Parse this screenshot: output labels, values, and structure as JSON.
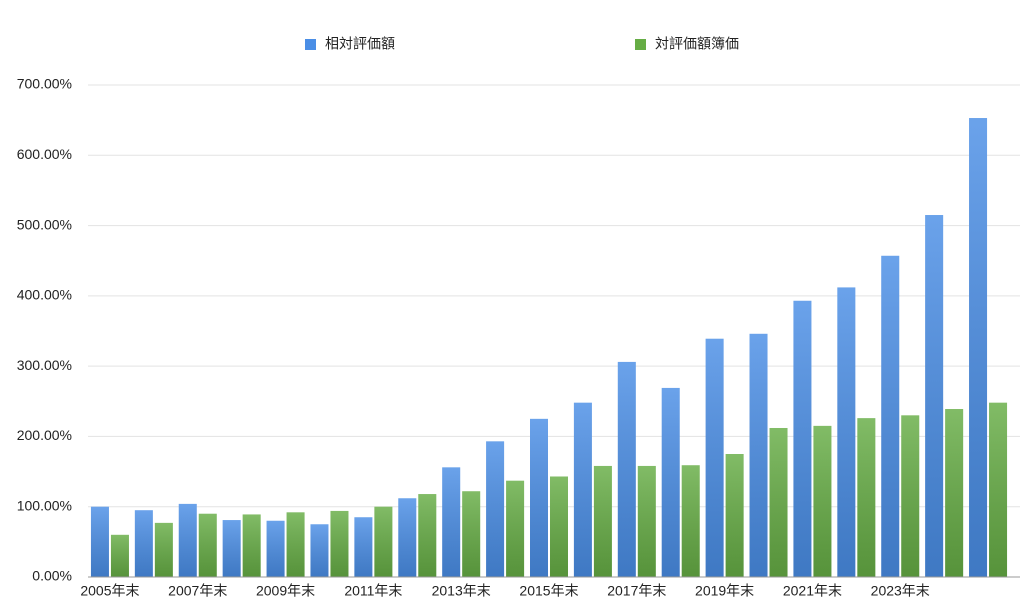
{
  "chart_data": {
    "type": "bar",
    "categories": [
      "2005年末",
      null,
      "2007年末",
      null,
      "2009年末",
      null,
      "2011年末",
      null,
      "2013年末",
      null,
      "2015年末",
      null,
      "2017年末",
      null,
      "2019年末",
      null,
      "2021年末",
      null,
      "2023年末",
      null,
      null
    ],
    "series": [
      {
        "name": "相対評価額",
        "color": "#4a8ee6",
        "values": [
          100,
          95,
          104,
          81,
          80,
          75,
          85,
          112,
          156,
          193,
          225,
          248,
          306,
          269,
          339,
          346,
          393,
          412,
          457,
          515,
          653
        ]
      },
      {
        "name": "対評価額簿価",
        "color": "#66ad45",
        "values": [
          60,
          77,
          90,
          89,
          92,
          94,
          100,
          118,
          122,
          137,
          143,
          158,
          158,
          159,
          175,
          212,
          215,
          226,
          230,
          239,
          248
        ]
      }
    ],
    "ylim": [
      0,
      700
    ],
    "yticks": [
      {
        "value": 0,
        "label": "0.00%"
      },
      {
        "value": 100,
        "label": "100.00%"
      },
      {
        "value": 200,
        "label": "200.00%"
      },
      {
        "value": 300,
        "label": "300.00%"
      },
      {
        "value": 400,
        "label": "400.00%"
      },
      {
        "value": 500,
        "label": "500.00%"
      },
      {
        "value": 600,
        "label": "600.00%"
      },
      {
        "value": 700,
        "label": "700.00%"
      }
    ],
    "grid": true,
    "legend": "top"
  }
}
